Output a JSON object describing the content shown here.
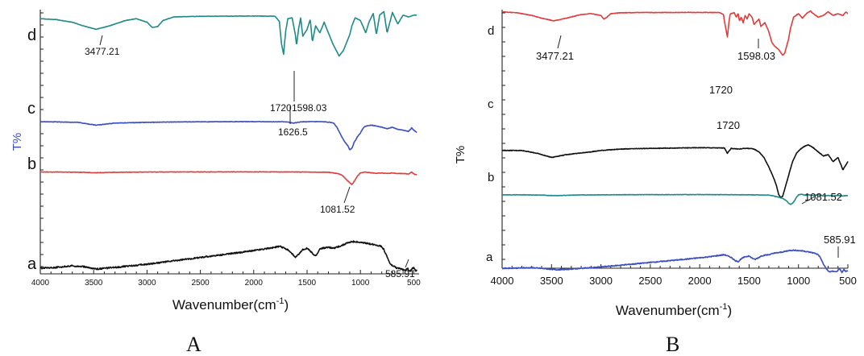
{
  "chart_data": [
    {
      "type": "line",
      "panel_label": "A",
      "xlabel": "Wavenumber(cm",
      "xlabel_sup": "-1",
      "xlabel_close": ")",
      "ylabel": "T%",
      "xlim": [
        4000,
        450
      ],
      "x_reversed": true,
      "xticks": [
        4000,
        3500,
        3000,
        2500,
        2000,
        1500,
        1000,
        500
      ],
      "grid": false,
      "series": [
        {
          "name": "d",
          "color": "#1f8a8a",
          "x": [
            4000,
            3850,
            3700,
            3600,
            3477.21,
            3350,
            3200,
            3100,
            3000,
            2950,
            2900,
            2850,
            2750,
            2600,
            2400,
            2000,
            1800,
            1760,
            1740,
            1720,
            1700,
            1680,
            1640,
            1610,
            1598.03,
            1580,
            1560,
            1540,
            1500,
            1470,
            1450,
            1420,
            1380,
            1340,
            1300,
            1260,
            1200,
            1160,
            1120,
            1100,
            1080,
            1050,
            1000,
            950,
            920,
            880,
            850,
            820,
            780,
            750,
            700,
            650,
            600,
            550,
            500,
            470
          ],
          "y": [
            88,
            87,
            84,
            80,
            76,
            80,
            86,
            88,
            84,
            78,
            79,
            86,
            90,
            90.5,
            90.8,
            91,
            90.8,
            85,
            60,
            48,
            74,
            88,
            89,
            70,
            58,
            76,
            89,
            68,
            76,
            87,
            62,
            80,
            72,
            84,
            72,
            60,
            46,
            52,
            64,
            70,
            80,
            89,
            86,
            72,
            84,
            94,
            70,
            92,
            96,
            72,
            95,
            82,
            92,
            90,
            92,
            92
          ]
        },
        {
          "name": "c",
          "color": "#3b4ec2",
          "x": [
            4000,
            3800,
            3650,
            3477.21,
            3300,
            3000,
            2800,
            2500,
            2000,
            1700,
            1626.5,
            1550,
            1400,
            1300,
            1250,
            1220,
            1200,
            1180,
            1150,
            1120,
            1100,
            1080,
            1060,
            1030,
            1000,
            970,
            940,
            900,
            850,
            800,
            750,
            700,
            650,
            600,
            550,
            520,
            500,
            470
          ],
          "y": [
            62,
            61.5,
            61,
            57,
            60,
            61,
            61.5,
            61.8,
            62,
            61.8,
            60,
            61.8,
            62,
            61.5,
            60,
            54,
            48,
            42,
            34,
            28,
            22,
            24,
            32,
            40,
            46,
            54,
            56,
            57,
            56,
            54,
            52,
            54,
            51,
            50,
            48,
            53,
            50,
            46
          ],
          "noise": 0.35
        },
        {
          "name": "b",
          "color": "#e03c3c",
          "x": [
            4000,
            3800,
            3600,
            3477.21,
            3300,
            3000,
            2700,
            2300,
            2000,
            1700,
            1500,
            1300,
            1250,
            1200,
            1170,
            1150,
            1130,
            1110,
            1081.52,
            1060,
            1030,
            1000,
            960,
            920,
            880,
            850,
            800,
            750,
            700,
            650,
            600,
            550,
            520,
            500,
            470
          ],
          "y": [
            44,
            44,
            43.5,
            42.5,
            43.5,
            44,
            44.2,
            44.3,
            44.3,
            44.2,
            44,
            43.5,
            42,
            40,
            37,
            33,
            28,
            24,
            18,
            24,
            35,
            42,
            44,
            43,
            42,
            41.5,
            42,
            41,
            42,
            41,
            41,
            40,
            44,
            40,
            38
          ],
          "noise": 0.45
        },
        {
          "name": "a",
          "color": "#111111",
          "x": [
            4000,
            3850,
            3700,
            3600,
            3477.21,
            3300,
            3000,
            2700,
            2400,
            2100,
            1900,
            1750,
            1680,
            1640,
            1610,
            1580,
            1540,
            1500,
            1470,
            1440,
            1420,
            1400,
            1380,
            1350,
            1300,
            1250,
            1200,
            1160,
            1130,
            1100,
            1081.52,
            1050,
            1000,
            950,
            900,
            860,
            830,
            800,
            780,
            760,
            740,
            720,
            700,
            680,
            660,
            640,
            620,
            600,
            585.91,
            560,
            540,
            520,
            500,
            480,
            470
          ],
          "y": [
            7,
            8,
            10,
            9,
            6,
            8,
            12,
            17,
            22,
            27,
            31,
            34,
            30,
            25,
            20,
            24,
            30,
            32,
            28,
            24,
            22,
            26,
            31,
            32,
            33,
            32,
            34,
            36,
            38,
            39,
            40,
            40,
            39,
            38,
            37,
            36,
            35,
            34,
            30,
            24,
            18,
            12,
            10,
            9,
            7,
            7,
            6,
            5,
            4,
            7,
            3,
            6,
            8,
            4,
            5
          ],
          "noise": 0.9
        }
      ],
      "curve_labels": [
        "a",
        "b",
        "c",
        "d"
      ],
      "annotations": [
        "3477.21",
        "1720",
        "1598.03",
        "1626.5",
        "1081.52",
        "585.91"
      ]
    },
    {
      "type": "line",
      "panel_label": "B",
      "xlabel": "Wavenumber(cm",
      "xlabel_sup": "-1",
      "xlabel_close": ")",
      "ylabel": "T%",
      "xlim": [
        4000,
        500
      ],
      "x_reversed": true,
      "xticks": [
        4000,
        3500,
        3000,
        2500,
        2000,
        1500,
        1000,
        500
      ],
      "grid": false,
      "series": [
        {
          "name": "d",
          "color": "#e03c3c",
          "x": [
            4000,
            3850,
            3700,
            3600,
            3477.21,
            3350,
            3200,
            3100,
            3000,
            2970,
            2940,
            2900,
            2800,
            2600,
            2400,
            2000,
            1800,
            1760,
            1740,
            1720,
            1700,
            1690,
            1650,
            1630,
            1610,
            1598.03,
            1580,
            1560,
            1540,
            1520,
            1500,
            1470,
            1450,
            1400,
            1380,
            1340,
            1300,
            1270,
            1240,
            1200,
            1160,
            1140,
            1120,
            1100,
            1080,
            1050,
            1000,
            960,
            920,
            880,
            850,
            800,
            750,
            700,
            650,
            600,
            550,
            520,
            500
          ],
          "y": [
            94,
            93,
            90,
            87,
            84,
            87,
            91,
            92,
            90,
            86,
            88,
            92,
            93,
            93.2,
            93.3,
            93.4,
            93.2,
            91,
            78,
            66,
            86,
            92,
            93,
            88,
            92,
            84,
            88,
            82,
            90,
            86,
            92,
            88,
            80,
            86,
            78,
            82,
            72,
            60,
            56,
            52,
            46,
            48,
            56,
            64,
            76,
            88,
            92,
            87,
            92,
            95,
            92,
            88,
            90,
            94,
            90,
            92,
            90,
            94,
            92
          ],
          "noise": 0.25
        },
        {
          "name": "c",
          "color": "#111111",
          "x": [
            4000,
            3800,
            3650,
            3500,
            3350,
            3100,
            3000,
            2800,
            2500,
            2000,
            1750,
            1720,
            1680,
            1600,
            1550,
            1500,
            1450,
            1400,
            1350,
            1300,
            1250,
            1220,
            1200,
            1180,
            1160,
            1140,
            1100,
            1060,
            1020,
            980,
            940,
            900,
            850,
            800,
            750,
            700,
            650,
            600,
            550,
            500
          ],
          "y": [
            60,
            60,
            58,
            55,
            57,
            59,
            60,
            61,
            61.5,
            62,
            61.8,
            58,
            61.5,
            61,
            61.5,
            61.5,
            61,
            59,
            55,
            48,
            40,
            34,
            28,
            26,
            27,
            32,
            42,
            52,
            58,
            61,
            63,
            64,
            62,
            59,
            56,
            57,
            52,
            55,
            46,
            52
          ]
        },
        {
          "name": "b",
          "color": "#1f8a8a",
          "x": [
            4000,
            3800,
            3600,
            3450,
            3300,
            3000,
            2500,
            2000,
            1700,
            1500,
            1300,
            1250,
            1200,
            1160,
            1120,
            1100,
            1081.52,
            1060,
            1040,
            1020,
            1000,
            970,
            950,
            920,
            900,
            850,
            800,
            750,
            700,
            650,
            600,
            550,
            500
          ],
          "y": [
            38,
            38,
            37.5,
            36.5,
            37.5,
            38,
            38.3,
            38.4,
            38.2,
            38,
            37.5,
            36,
            34,
            32,
            28,
            24,
            22,
            24,
            28,
            34,
            38,
            39,
            38,
            37,
            38,
            37,
            38,
            36,
            37,
            36,
            37,
            36,
            37
          ],
          "noise": 0.35
        },
        {
          "name": "a",
          "color": "#3b4ec2",
          "x": [
            4000,
            3850,
            3700,
            3600,
            3450,
            3300,
            3000,
            2700,
            2400,
            2100,
            1900,
            1750,
            1680,
            1640,
            1610,
            1580,
            1540,
            1500,
            1470,
            1440,
            1400,
            1380,
            1350,
            1300,
            1250,
            1200,
            1160,
            1130,
            1100,
            1050,
            1000,
            950,
            900,
            860,
            830,
            800,
            780,
            760,
            740,
            720,
            700,
            680,
            650,
            620,
            600,
            585.91,
            560,
            540,
            520,
            500
          ],
          "y": [
            8,
            8.5,
            9,
            8,
            6,
            7,
            10,
            14,
            18,
            22,
            25,
            28,
            24,
            19,
            18,
            22,
            25,
            26,
            23,
            21,
            24,
            26,
            27,
            28,
            30,
            31,
            32,
            33,
            34,
            34.5,
            34,
            33.5,
            32,
            31,
            30,
            28,
            24,
            18,
            12,
            8,
            4,
            3,
            4,
            3,
            5,
            8,
            2,
            6,
            3,
            5
          ],
          "noise": 0.7
        }
      ],
      "curve_labels": [
        "a",
        "b",
        "c",
        "d"
      ],
      "annotations": [
        "3477.21",
        "1720",
        "1598.03",
        "1720",
        "1081.52",
        "585.91"
      ]
    }
  ]
}
